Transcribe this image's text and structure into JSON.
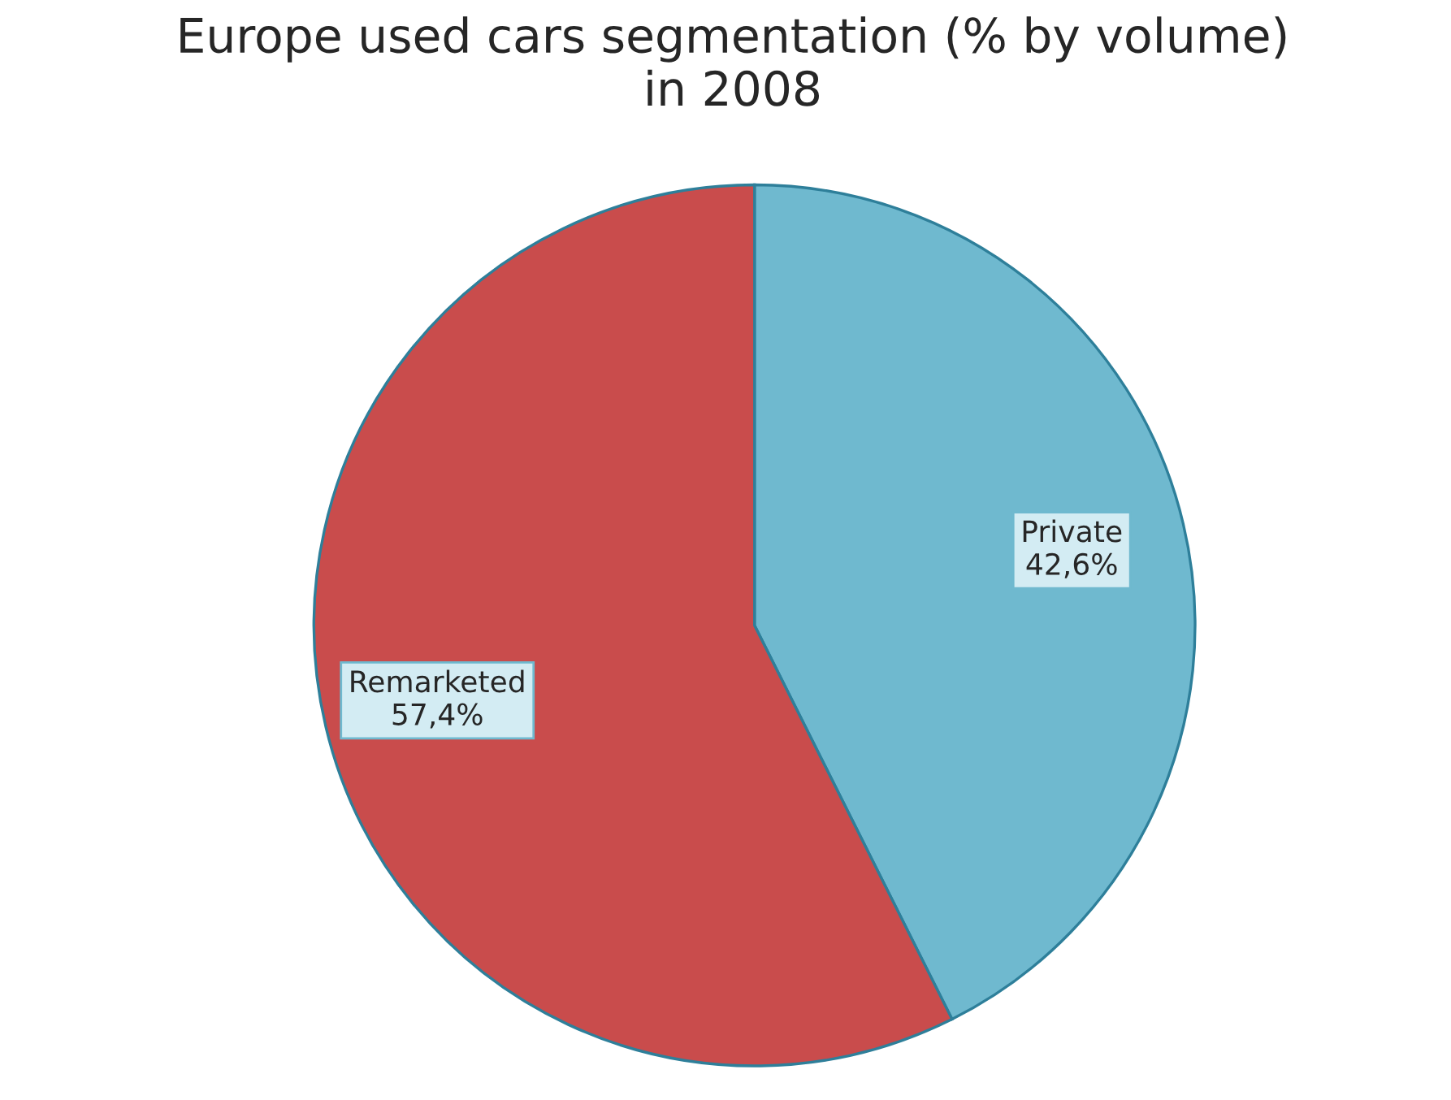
{
  "chart_data": {
    "type": "pie",
    "title": "Europe used cars segmentation (% by volume)\nin 2008",
    "categories": [
      "Private",
      "Remarketed"
    ],
    "values": [
      42.6,
      57.4
    ],
    "colors": [
      "#6fb9cf",
      "#c94c4c"
    ],
    "value_labels": [
      "42,6%",
      "57,4%"
    ],
    "legend": false
  }
}
